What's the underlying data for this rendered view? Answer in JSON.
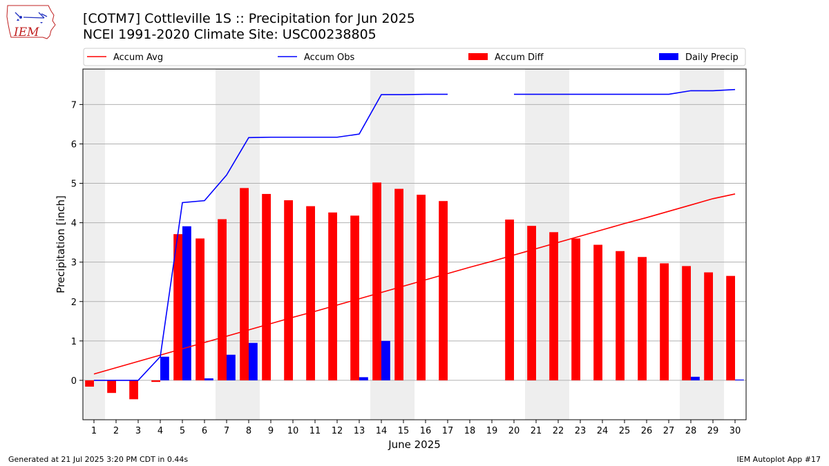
{
  "header": {
    "title_line1": "[COTM7] Cottleville 1S :: Precipitation for Jun 2025",
    "title_line2": "NCEI 1991-2020 Climate Site: USC00238805"
  },
  "logo": {
    "text": "IEM",
    "icon": "iem-iowa-map-logo"
  },
  "footer": {
    "generated": "Generated at 21 Jul 2025 3:20 PM CDT in 0.44s",
    "app": "IEM Autoplot App #17"
  },
  "chart_data": {
    "type": "bar",
    "xlabel": "June 2025",
    "ylabel": "Precipitation [inch]",
    "xlim": [
      0.5,
      30.5
    ],
    "ylim": [
      -1,
      7.9
    ],
    "yticks": [
      0,
      1,
      2,
      3,
      4,
      5,
      6,
      7
    ],
    "grid": "horizontal",
    "legend_position": "top, above plot",
    "days": [
      1,
      2,
      3,
      4,
      5,
      6,
      7,
      8,
      9,
      10,
      11,
      12,
      13,
      14,
      15,
      16,
      17,
      18,
      19,
      20,
      21,
      22,
      23,
      24,
      25,
      26,
      27,
      28,
      29,
      30
    ],
    "weekend_shading": [
      [
        1,
        1
      ],
      [
        7,
        8
      ],
      [
        14,
        15
      ],
      [
        21,
        22
      ],
      [
        28,
        29
      ]
    ],
    "weekend_color": "#eeeeee",
    "series": [
      {
        "name": "Accum Avg",
        "kind": "line",
        "color": "#ff0000",
        "values": [
          0.16,
          0.32,
          0.48,
          0.64,
          0.8,
          0.96,
          1.12,
          1.28,
          1.44,
          1.6,
          1.75,
          1.91,
          2.07,
          2.23,
          2.39,
          2.55,
          2.71,
          2.87,
          3.02,
          3.18,
          3.34,
          3.5,
          3.66,
          3.82,
          3.98,
          4.13,
          4.29,
          4.45,
          4.61,
          4.73
        ]
      },
      {
        "name": "Accum Obs",
        "kind": "line",
        "color": "#0000ff",
        "values": [
          0.0,
          0.0,
          0.0,
          0.6,
          4.51,
          4.56,
          5.21,
          6.16,
          6.17,
          6.17,
          6.17,
          6.17,
          6.25,
          7.25,
          7.25,
          7.26,
          7.26,
          null,
          null,
          7.26,
          7.26,
          7.26,
          7.26,
          7.26,
          7.26,
          7.26,
          7.26,
          7.35,
          7.35,
          7.38
        ]
      },
      {
        "name": "Accum Diff",
        "kind": "bar",
        "color": "#ff0000",
        "values": [
          -0.16,
          -0.32,
          -0.48,
          -0.04,
          3.71,
          3.6,
          4.09,
          4.88,
          4.73,
          4.57,
          4.42,
          4.26,
          4.18,
          5.02,
          4.86,
          4.71,
          4.55,
          null,
          null,
          4.08,
          3.92,
          3.76,
          3.6,
          3.44,
          3.28,
          3.13,
          2.97,
          2.9,
          2.74,
          2.65
        ]
      },
      {
        "name": "Daily Precip",
        "kind": "bar",
        "color": "#0000ff",
        "values": [
          0,
          0,
          0,
          0.6,
          3.91,
          0.05,
          0.65,
          0.95,
          0,
          0,
          0,
          0,
          0.08,
          1.0,
          0,
          0,
          0,
          null,
          null,
          0,
          0,
          0,
          0,
          0,
          0,
          0,
          0,
          0.09,
          0,
          0.02
        ]
      }
    ]
  }
}
